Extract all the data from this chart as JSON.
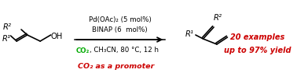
{
  "bg_color": "#ffffff",
  "arrow_color": "#000000",
  "black": "#000000",
  "green": "#00aa00",
  "red": "#cc0000",
  "reagents_line1": "Pd(OAc)₂ (5 mol%)",
  "reagents_line2": "BINAP (6  mol%)",
  "conditions_green": "CO₂",
  "conditions_black": ", CH₃CN, 80 °C, 12 h",
  "promoter_text": "CO₂ as a promoter",
  "examples_line1": "20 examples",
  "examples_line2": "up to 97% yield",
  "substrate_r2": "R²",
  "substrate_r1": "R¹",
  "substrate_oh": "OH",
  "product_r2": "R²",
  "product_r1": "R¹"
}
